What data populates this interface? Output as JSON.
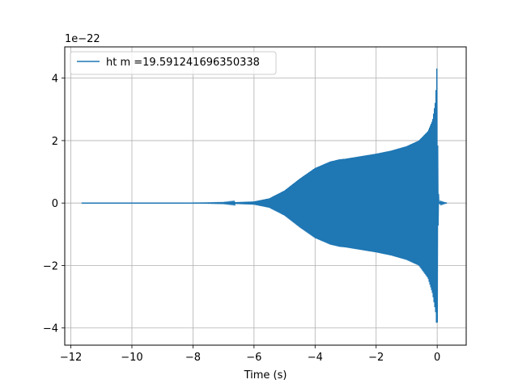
{
  "chart_data": {
    "type": "line",
    "title": "",
    "xlabel": "Time (s)",
    "ylabel": "",
    "y_offset_label": "1e−22",
    "xlim": [
      -12.2,
      0.95
    ],
    "ylim": [
      -4.55,
      5.0
    ],
    "x_ticks": [
      -12,
      -10,
      -8,
      -6,
      -4,
      -2,
      0
    ],
    "x_tick_labels": [
      "−12",
      "−10",
      "−8",
      "−6",
      "−4",
      "−2",
      "0"
    ],
    "y_ticks": [
      -4,
      -2,
      0,
      2,
      4
    ],
    "y_tick_labels": [
      "−4",
      "−2",
      "0",
      "2",
      "4"
    ],
    "grid": true,
    "legend_position": "top-left",
    "series": [
      {
        "name": "ht m =19.591241696350338",
        "color": "#1f77b4",
        "x_start": -11.65,
        "x_end": 0.32,
        "envelope_x": [
          -11.65,
          -8.0,
          -7.0,
          -6.5,
          -6.0,
          -5.5,
          -5.0,
          -4.5,
          -4.0,
          -3.5,
          -3.2,
          -3.0,
          -2.5,
          -2.0,
          -1.5,
          -1.0,
          -0.6,
          -0.3,
          -0.15,
          -0.05,
          0.0,
          0.02,
          0.05,
          0.32
        ],
        "envelope_upper": [
          0.0,
          0.0,
          0.01,
          0.03,
          0.05,
          0.15,
          0.4,
          0.78,
          1.12,
          1.33,
          1.4,
          1.42,
          1.5,
          1.58,
          1.68,
          1.82,
          2.0,
          2.3,
          2.65,
          3.3,
          4.6,
          1.0,
          0.03,
          0.0
        ],
        "envelope_lower": [
          0.0,
          0.0,
          -0.01,
          -0.03,
          -0.05,
          -0.15,
          -0.4,
          -0.78,
          -1.12,
          -1.33,
          -1.4,
          -1.42,
          -1.5,
          -1.58,
          -1.68,
          -1.82,
          -2.0,
          -2.4,
          -2.9,
          -3.5,
          -4.15,
          -1.0,
          -0.03,
          0.0
        ]
      }
    ]
  }
}
